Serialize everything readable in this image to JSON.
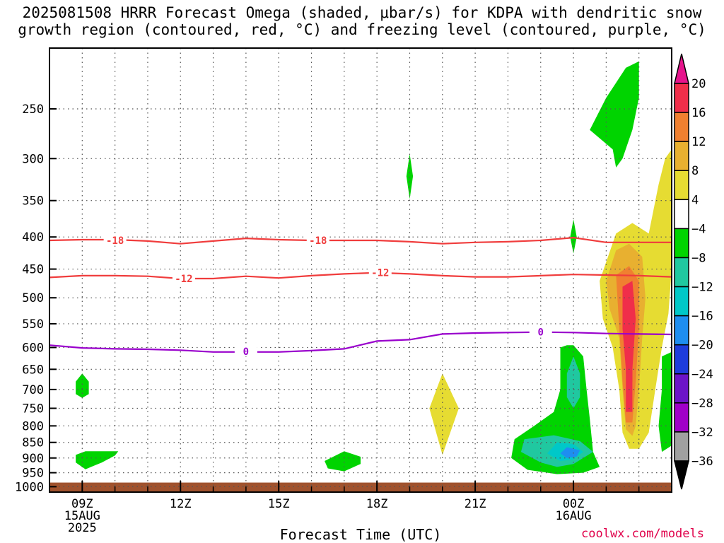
{
  "title": {
    "line1": "2025081508 HRRR Forecast Omega (shaded, μbar/s) for KDPA with dendritic snow",
    "line2": "growth region (contoured, red, °C) and freezing level (contoured, purple, °C)"
  },
  "xaxis_title": "Forecast Time (UTC)",
  "credit": "coolwx.com/models",
  "colors": {
    "dgz_contour": "#f03c3c",
    "freezing_contour": "#9900cc",
    "ground": "#a0522d"
  },
  "chart_data": {
    "type": "heatmap",
    "title": "2025081508 HRRR Forecast Omega (shaded, μbar/s) for KDPA with dendritic snow growth region (contoured, red, °C) and freezing level (contoured, purple, °C)",
    "xlabel": "Forecast Time (UTC)",
    "ylabel": "",
    "x_range_hours": [
      8,
      27
    ],
    "y_range_mb": [
      1020,
      200
    ],
    "grid": true,
    "x_ticks": [
      {
        "hour": 9,
        "labels": [
          "09Z",
          "15AUG",
          "2025"
        ]
      },
      {
        "hour": 12,
        "labels": [
          "12Z"
        ]
      },
      {
        "hour": 15,
        "labels": [
          "15Z"
        ]
      },
      {
        "hour": 18,
        "labels": [
          "18Z"
        ]
      },
      {
        "hour": 21,
        "labels": [
          "21Z"
        ]
      },
      {
        "hour": 24,
        "labels": [
          "00Z",
          "16AUG"
        ]
      }
    ],
    "y_ticks": [
      250,
      300,
      350,
      400,
      450,
      500,
      550,
      600,
      650,
      700,
      750,
      800,
      850,
      900,
      950,
      1000
    ],
    "colorbar": {
      "labels": [
        "20",
        "16",
        "12",
        "8",
        "4",
        "−4",
        "−8",
        "−12",
        "−16",
        "−20",
        "−24",
        "−28",
        "−32",
        "−36"
      ],
      "bins": [
        {
          "lo": 16,
          "hi": 20,
          "color": "#f02e4a"
        },
        {
          "lo": 12,
          "hi": 16,
          "color": "#f08030"
        },
        {
          "lo": 8,
          "hi": 12,
          "color": "#e8b030"
        },
        {
          "lo": 4,
          "hi": 8,
          "color": "#e6dc32"
        },
        {
          "lo": -4,
          "hi": 4,
          "color": "#ffffff"
        },
        {
          "lo": -8,
          "hi": -4,
          "color": "#00d400"
        },
        {
          "lo": -12,
          "hi": -8,
          "color": "#20c8a0"
        },
        {
          "lo": -16,
          "hi": -12,
          "color": "#00c8c8"
        },
        {
          "lo": -20,
          "hi": -16,
          "color": "#1e8ef0"
        },
        {
          "lo": -24,
          "hi": -20,
          "color": "#1e3cdc"
        },
        {
          "lo": -28,
          "hi": -24,
          "color": "#6c14c8"
        },
        {
          "lo": -32,
          "hi": -28,
          "color": "#a000c8"
        },
        {
          "lo": -36,
          "hi": -32,
          "color": "#a0a0a0"
        }
      ],
      "top_arrow_color": "#e6148c",
      "bottom_arrow_color": "#000000"
    },
    "contours": [
      {
        "name": "-18",
        "color": "#f03c3c",
        "label_positions": [
          [
            10.0,
            405
          ],
          [
            16.2,
            405
          ]
        ],
        "points": [
          [
            8.0,
            405
          ],
          [
            9.0,
            404
          ],
          [
            10.0,
            404
          ],
          [
            11.0,
            406
          ],
          [
            12.0,
            410
          ],
          [
            13.0,
            406
          ],
          [
            14.0,
            402
          ],
          [
            15.0,
            404
          ],
          [
            16.0,
            405
          ],
          [
            17.0,
            405
          ],
          [
            18.0,
            405
          ],
          [
            19.0,
            407
          ],
          [
            20.0,
            410
          ],
          [
            21.0,
            408
          ],
          [
            22.0,
            407
          ],
          [
            23.0,
            405
          ],
          [
            24.0,
            401
          ],
          [
            25.0,
            408
          ],
          [
            26.0,
            408
          ],
          [
            27.0,
            408
          ]
        ]
      },
      {
        "name": "-12",
        "color": "#f03c3c",
        "label_positions": [
          [
            12.1,
            466
          ],
          [
            18.1,
            456
          ]
        ],
        "points": [
          [
            8.0,
            464
          ],
          [
            9.0,
            461
          ],
          [
            10.0,
            461
          ],
          [
            11.0,
            462
          ],
          [
            12.0,
            466
          ],
          [
            13.0,
            466
          ],
          [
            14.0,
            462
          ],
          [
            15.0,
            465
          ],
          [
            16.0,
            461
          ],
          [
            17.0,
            458
          ],
          [
            18.0,
            456
          ],
          [
            19.0,
            458
          ],
          [
            20.0,
            461
          ],
          [
            21.0,
            463
          ],
          [
            22.0,
            463
          ],
          [
            23.0,
            461
          ],
          [
            24.0,
            459
          ],
          [
            25.0,
            460
          ],
          [
            26.0,
            461
          ],
          [
            27.0,
            463
          ]
        ]
      },
      {
        "name": "0",
        "color": "#9900cc",
        "label_positions": [
          [
            14.0,
            609
          ],
          [
            23.0,
            567
          ]
        ],
        "points": [
          [
            8.0,
            595
          ],
          [
            9.0,
            601
          ],
          [
            10.0,
            603
          ],
          [
            11.0,
            604
          ],
          [
            12.0,
            606
          ],
          [
            13.0,
            610
          ],
          [
            14.0,
            610
          ],
          [
            15.0,
            610
          ],
          [
            16.0,
            607
          ],
          [
            17.0,
            603
          ],
          [
            18.0,
            586
          ],
          [
            19.0,
            583
          ],
          [
            20.0,
            571
          ],
          [
            21.0,
            569
          ],
          [
            22.0,
            568
          ],
          [
            23.0,
            567
          ],
          [
            24.0,
            568
          ],
          [
            25.0,
            570
          ],
          [
            26.0,
            571
          ],
          [
            27.0,
            572
          ]
        ]
      }
    ],
    "shaded_regions": [
      {
        "value": "-4 to -8",
        "polygon": [
          [
            8.8,
            890
          ],
          [
            9.1,
            878
          ],
          [
            9.6,
            878
          ],
          [
            10.1,
            878
          ],
          [
            10.0,
            892
          ],
          [
            9.6,
            915
          ],
          [
            9.1,
            938
          ],
          [
            8.8,
            915
          ]
        ]
      },
      {
        "value": "-4 to -8",
        "polygon": [
          [
            9.0,
            660
          ],
          [
            9.2,
            680
          ],
          [
            9.2,
            712
          ],
          [
            9.0,
            722
          ],
          [
            8.8,
            712
          ],
          [
            8.8,
            680
          ]
        ]
      },
      {
        "value": "-4 to -8",
        "polygon": [
          [
            17.0,
            878
          ],
          [
            17.5,
            896
          ],
          [
            17.5,
            920
          ],
          [
            17.0,
            945
          ],
          [
            16.5,
            935
          ],
          [
            16.4,
            910
          ]
        ]
      },
      {
        "value": "-4 to -8",
        "polygon": [
          [
            19.0,
            295
          ],
          [
            19.1,
            320
          ],
          [
            19.0,
            348
          ],
          [
            18.9,
            320
          ]
        ]
      },
      {
        "value": "-4 to -8",
        "polygon": [
          [
            24.0,
            375
          ],
          [
            24.1,
            400
          ],
          [
            24.0,
            425
          ],
          [
            23.9,
            400
          ]
        ]
      },
      {
        "value": "-4 to -8",
        "polygon": [
          [
            25.0,
            240
          ],
          [
            25.6,
            215
          ],
          [
            26.0,
            210
          ],
          [
            26.0,
            240
          ],
          [
            25.8,
            270
          ],
          [
            25.5,
            300
          ],
          [
            25.3,
            310
          ],
          [
            25.2,
            290
          ],
          [
            24.5,
            270
          ]
        ]
      },
      {
        "value": "-4 to -8",
        "polygon": [
          [
            24.0,
            595
          ],
          [
            24.3,
            620
          ],
          [
            24.4,
            700
          ],
          [
            24.5,
            780
          ],
          [
            24.6,
            880
          ],
          [
            24.8,
            930
          ],
          [
            24.3,
            950
          ],
          [
            23.5,
            955
          ],
          [
            22.6,
            940
          ],
          [
            22.1,
            900
          ],
          [
            22.2,
            840
          ],
          [
            22.8,
            800
          ],
          [
            23.4,
            760
          ],
          [
            23.6,
            700
          ],
          [
            23.6,
            600
          ],
          [
            23.8,
            595
          ]
        ]
      },
      {
        "value": "-4 to -8",
        "polygon": [
          [
            26.7,
            620
          ],
          [
            27.0,
            610
          ],
          [
            27.0,
            860
          ],
          [
            26.7,
            880
          ],
          [
            26.6,
            800
          ],
          [
            26.7,
            700
          ]
        ]
      },
      {
        "value": "-8 to -12",
        "polygon": [
          [
            22.5,
            840
          ],
          [
            23.4,
            828
          ],
          [
            24.2,
            846
          ],
          [
            24.6,
            880
          ],
          [
            24.0,
            920
          ],
          [
            23.5,
            930
          ],
          [
            23.0,
            915
          ],
          [
            22.4,
            880
          ]
        ]
      },
      {
        "value": "-8 to -12",
        "polygon": [
          [
            24.0,
            620
          ],
          [
            24.2,
            660
          ],
          [
            24.2,
            720
          ],
          [
            24.0,
            750
          ],
          [
            23.8,
            720
          ],
          [
            23.8,
            660
          ]
        ]
      },
      {
        "value": "-12 to -16",
        "polygon": [
          [
            23.5,
            850
          ],
          [
            24.0,
            855
          ],
          [
            24.3,
            880
          ],
          [
            24.0,
            905
          ],
          [
            23.6,
            910
          ],
          [
            23.2,
            885
          ]
        ]
      },
      {
        "value": "-16 to -20",
        "polygon": [
          [
            23.8,
            865
          ],
          [
            24.2,
            875
          ],
          [
            24.1,
            895
          ],
          [
            23.8,
            900
          ],
          [
            23.6,
            885
          ]
        ]
      },
      {
        "value": "4 to 8",
        "polygon": [
          [
            20.0,
            660
          ],
          [
            20.5,
            750
          ],
          [
            20.0,
            890
          ],
          [
            19.6,
            750
          ]
        ]
      },
      {
        "value": "4 to 8",
        "polygon": [
          [
            24.8,
            470
          ],
          [
            25.3,
            395
          ],
          [
            25.8,
            380
          ],
          [
            26.3,
            395
          ],
          [
            26.6,
            330
          ],
          [
            26.8,
            300
          ],
          [
            27.0,
            290
          ],
          [
            27.0,
            450
          ],
          [
            26.9,
            530
          ],
          [
            26.7,
            600
          ],
          [
            26.5,
            700
          ],
          [
            26.3,
            820
          ],
          [
            26.0,
            870
          ],
          [
            25.7,
            870
          ],
          [
            25.5,
            820
          ],
          [
            25.4,
            700
          ],
          [
            25.2,
            600
          ],
          [
            24.9,
            540
          ]
        ]
      },
      {
        "value": "8 to 12",
        "polygon": [
          [
            25.0,
            470
          ],
          [
            25.3,
            420
          ],
          [
            25.7,
            410
          ],
          [
            26.1,
            430
          ],
          [
            26.2,
            500
          ],
          [
            26.1,
            580
          ],
          [
            26.0,
            700
          ],
          [
            25.9,
            800
          ],
          [
            25.8,
            830
          ],
          [
            25.6,
            810
          ],
          [
            25.5,
            700
          ],
          [
            25.4,
            580
          ],
          [
            25.1,
            520
          ]
        ]
      },
      {
        "value": "12 to 16",
        "polygon": [
          [
            25.3,
            460
          ],
          [
            25.7,
            445
          ],
          [
            26.0,
            470
          ],
          [
            26.0,
            560
          ],
          [
            25.9,
            680
          ],
          [
            25.8,
            790
          ],
          [
            25.6,
            790
          ],
          [
            25.5,
            680
          ],
          [
            25.4,
            560
          ]
        ]
      },
      {
        "value": "16 to 20",
        "polygon": [
          [
            25.5,
            480
          ],
          [
            25.8,
            470
          ],
          [
            25.9,
            540
          ],
          [
            25.8,
            650
          ],
          [
            25.8,
            760
          ],
          [
            25.6,
            760
          ],
          [
            25.6,
            650
          ],
          [
            25.5,
            560
          ]
        ]
      },
      {
        "value": "16 to 20",
        "polygon": [
          [
            25.7,
            600
          ],
          [
            25.8,
            620
          ],
          [
            25.8,
            680
          ],
          [
            25.7,
            690
          ],
          [
            25.6,
            660
          ],
          [
            25.6,
            620
          ]
        ]
      }
    ]
  }
}
